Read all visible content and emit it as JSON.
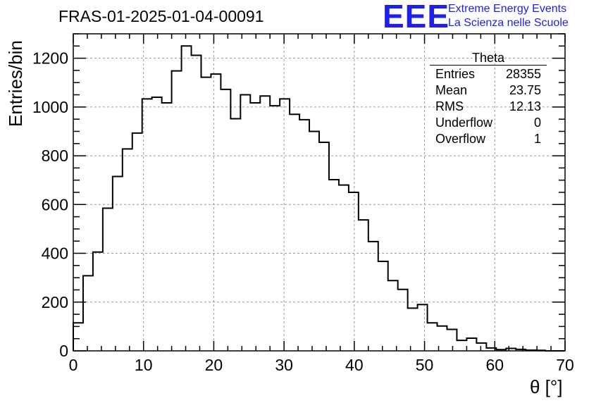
{
  "title": "FRAS-01-2025-01-04-00091",
  "logo": {
    "mark": "EEE",
    "line1": "Extreme Energy Events",
    "line2": "La Scienza nelle Scuole",
    "color": "#1f1fe8"
  },
  "stats_box": {
    "name": "Theta",
    "rows": [
      {
        "label": "Entries",
        "value": "28355"
      },
      {
        "label": "Mean",
        "value": "23.75"
      },
      {
        "label": "RMS",
        "value": "12.13"
      },
      {
        "label": "Underflow",
        "value": "0"
      },
      {
        "label": "Overflow",
        "value": "1"
      }
    ]
  },
  "chart_data": {
    "type": "bar",
    "style": "step-histogram",
    "title": "FRAS-01-2025-01-04-00091",
    "xlabel": "θ [°]",
    "ylabel": "Entries/bin",
    "xlim": [
      0,
      70
    ],
    "ylim": [
      0,
      1300
    ],
    "bin_width": 1.4,
    "grid": true,
    "x_ticks": [
      0,
      10,
      20,
      30,
      40,
      50,
      60,
      70
    ],
    "y_ticks": [
      0,
      200,
      400,
      600,
      800,
      1000,
      1200
    ],
    "values": [
      115,
      308,
      405,
      585,
      715,
      828,
      893,
      1033,
      1040,
      1017,
      1148,
      1250,
      1212,
      1122,
      1135,
      1072,
      952,
      1050,
      1017,
      1045,
      1005,
      1033,
      970,
      948,
      900,
      855,
      702,
      680,
      650,
      537,
      448,
      367,
      288,
      252,
      175,
      190,
      115,
      102,
      88,
      43,
      52,
      32,
      12,
      5,
      10,
      6,
      3,
      2,
      0,
      0
    ]
  }
}
